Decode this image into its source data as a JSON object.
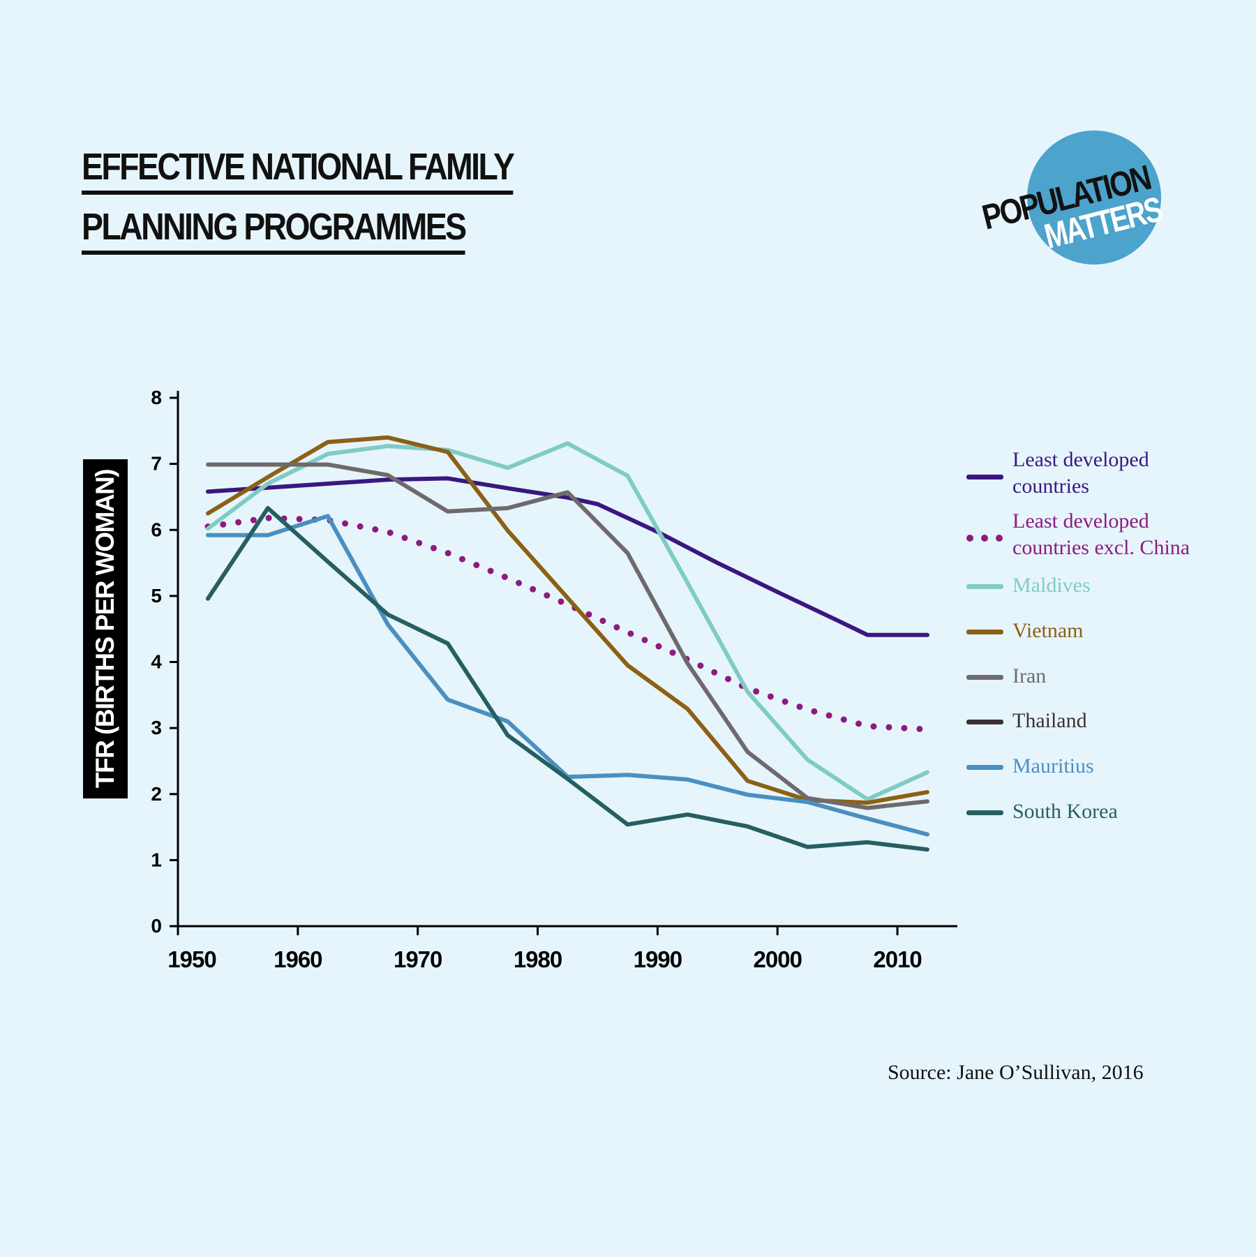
{
  "title": {
    "line1": "EFFECTIVE NATIONAL FAMILY",
    "line2": "PLANNING PROGRAMMES"
  },
  "logo": {
    "line1": "POPULATION",
    "line2": "MATTERS",
    "circle_color": "#4ca3cc"
  },
  "source": "Source:  Jane O’Sullivan, 2016",
  "chart_data": {
    "type": "line",
    "title": "EFFECTIVE NATIONAL FAMILY PLANNING PROGRAMMES",
    "xlabel": "",
    "ylabel": "TFR (BIRTHS PER WOMAN)",
    "xlim": [
      1950,
      2015
    ],
    "ylim": [
      0,
      8
    ],
    "x_ticks": [
      1950,
      1960,
      1970,
      1980,
      1990,
      2000,
      2010
    ],
    "x_tick_labels": [
      "1950",
      "1960",
      "1970",
      "1980",
      "1990",
      "2000",
      "2010"
    ],
    "y_ticks": [
      0,
      1,
      2,
      3,
      4,
      5,
      6,
      7,
      8
    ],
    "y_tick_labels": [
      "0",
      "1",
      "2",
      "3",
      "4",
      "5",
      "6",
      "7",
      "8"
    ],
    "legend_position": "right",
    "series": [
      {
        "name": "Least developed countries",
        "color": "#3a1780",
        "style": "solid",
        "points": [
          [
            1952.5,
            6.58
          ],
          [
            1957.5,
            6.64
          ],
          [
            1962.5,
            6.7
          ],
          [
            1967.5,
            6.76
          ],
          [
            1972.5,
            6.78
          ],
          [
            1977.5,
            6.63
          ],
          [
            1982.5,
            6.49
          ],
          [
            1985,
            6.39
          ],
          [
            1990,
            5.97
          ],
          [
            1995,
            5.5
          ],
          [
            2000,
            5.06
          ],
          [
            2005,
            4.63
          ],
          [
            2007.5,
            4.41
          ],
          [
            2012.5,
            4.41
          ]
        ]
      },
      {
        "name": "Least developed countries excl. China",
        "color": "#8e1a80",
        "style": "dotted",
        "points": [
          [
            1952.5,
            6.05
          ],
          [
            1957.5,
            6.18
          ],
          [
            1962.5,
            6.15
          ],
          [
            1967.5,
            5.97
          ],
          [
            1972.5,
            5.65
          ],
          [
            1977.5,
            5.27
          ],
          [
            1982.5,
            4.87
          ],
          [
            1987.5,
            4.45
          ],
          [
            1992.5,
            4.04
          ],
          [
            1997.5,
            3.6
          ],
          [
            2002.5,
            3.28
          ],
          [
            2007.5,
            3.03
          ],
          [
            2012.5,
            2.98
          ]
        ]
      },
      {
        "name": "Maldives",
        "color": "#7fccc4",
        "style": "solid",
        "points": [
          [
            1952.5,
            6.02
          ],
          [
            1957.5,
            6.7
          ],
          [
            1962.5,
            7.15
          ],
          [
            1967.5,
            7.27
          ],
          [
            1972.5,
            7.21
          ],
          [
            1977.5,
            6.94
          ],
          [
            1982.5,
            7.31
          ],
          [
            1987.5,
            6.82
          ],
          [
            1992.5,
            5.2
          ],
          [
            1997.5,
            3.55
          ],
          [
            2002.5,
            2.52
          ],
          [
            2007.5,
            1.92
          ],
          [
            2012.5,
            2.33
          ]
        ]
      },
      {
        "name": "Vietnam",
        "color": "#8c6015",
        "style": "solid",
        "points": [
          [
            1952.5,
            6.25
          ],
          [
            1957.5,
            6.8
          ],
          [
            1962.5,
            7.33
          ],
          [
            1967.5,
            7.4
          ],
          [
            1972.5,
            7.18
          ],
          [
            1977.5,
            5.99
          ],
          [
            1982.5,
            4.97
          ],
          [
            1987.5,
            3.95
          ],
          [
            1992.5,
            3.29
          ],
          [
            1997.5,
            2.2
          ],
          [
            2002.5,
            1.91
          ],
          [
            2007.5,
            1.87
          ],
          [
            2012.5,
            2.03
          ]
        ]
      },
      {
        "name": "Iran",
        "color": "#6e6a6c",
        "style": "solid",
        "points": [
          [
            1952.5,
            6.99
          ],
          [
            1957.5,
            6.99
          ],
          [
            1962.5,
            6.99
          ],
          [
            1967.5,
            6.83
          ],
          [
            1972.5,
            6.28
          ],
          [
            1977.5,
            6.33
          ],
          [
            1982.5,
            6.57
          ],
          [
            1987.5,
            5.65
          ],
          [
            1992.5,
            3.98
          ],
          [
            1997.5,
            2.64
          ],
          [
            2002.5,
            1.94
          ],
          [
            2007.5,
            1.79
          ],
          [
            2012.5,
            1.89
          ]
        ]
      },
      {
        "name": "Thailand",
        "color": "#3a3032",
        "style": "solid",
        "points": []
      },
      {
        "name": "Mauritius",
        "color": "#4b8fc1",
        "style": "solid",
        "points": [
          [
            1952.5,
            5.92
          ],
          [
            1957.5,
            5.92
          ],
          [
            1962.5,
            6.21
          ],
          [
            1967.5,
            4.57
          ],
          [
            1972.5,
            3.43
          ],
          [
            1977.5,
            3.1
          ],
          [
            1982.5,
            2.26
          ],
          [
            1987.5,
            2.29
          ],
          [
            1992.5,
            2.22
          ],
          [
            1997.5,
            1.99
          ],
          [
            2002.5,
            1.88
          ],
          [
            2007.5,
            1.63
          ],
          [
            2012.5,
            1.39
          ]
        ]
      },
      {
        "name": "South Korea",
        "color": "#265f62",
        "style": "solid",
        "points": [
          [
            1952.5,
            4.96
          ],
          [
            1957.5,
            6.33
          ],
          [
            1962.5,
            5.52
          ],
          [
            1967.5,
            4.72
          ],
          [
            1972.5,
            4.28
          ],
          [
            1977.5,
            2.89
          ],
          [
            1982.5,
            2.23
          ],
          [
            1987.5,
            1.54
          ],
          [
            1992.5,
            1.69
          ],
          [
            1997.5,
            1.51
          ],
          [
            2002.5,
            1.2
          ],
          [
            2007.5,
            1.27
          ],
          [
            2012.5,
            1.16
          ]
        ]
      }
    ]
  }
}
